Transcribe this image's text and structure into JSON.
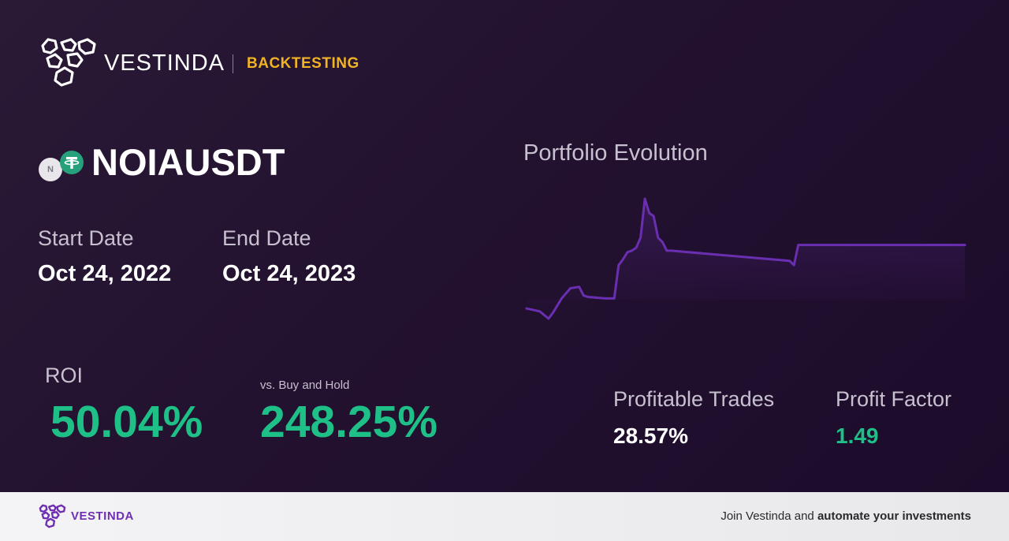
{
  "brand": {
    "name": "VESTINDA",
    "section": "BACKTESTING",
    "logo_icon": "hexagon-cluster-logo",
    "accent_color": "#f0b323"
  },
  "asset": {
    "pair": "NOIAUSDT",
    "base_coin_letter": "N",
    "base_icon": "noia-coin-icon",
    "quote_icon": "tether-coin-icon"
  },
  "dates": {
    "start_label": "Start Date",
    "start_value": "Oct 24, 2022",
    "end_label": "End Date",
    "end_value": "Oct 24, 2023"
  },
  "roi": {
    "label": "ROI",
    "value": "50.04%",
    "buy_hold_label": "vs. Buy and Hold",
    "buy_hold_value": "248.25%",
    "positive_color": "#1fc087"
  },
  "chart": {
    "title": "Portfolio Evolution",
    "line_color": "#6a2fb0"
  },
  "chart_data": {
    "type": "line",
    "title": "Portfolio Evolution",
    "xlabel": "",
    "ylabel": "",
    "grid": false,
    "x": [
      0,
      3,
      5,
      6,
      8,
      10,
      12,
      13,
      14,
      18,
      20,
      21,
      22,
      23,
      24,
      25,
      26,
      27,
      28,
      29,
      30,
      31,
      32,
      33,
      60,
      61,
      62,
      100
    ],
    "values": [
      0.96,
      0.94,
      0.89,
      0.93,
      1.03,
      1.1,
      1.11,
      1.05,
      1.04,
      1.03,
      1.03,
      1.26,
      1.3,
      1.35,
      1.36,
      1.38,
      1.45,
      1.72,
      1.62,
      1.6,
      1.45,
      1.42,
      1.36,
      1.36,
      1.29,
      1.26,
      1.4,
      1.4
    ]
  },
  "stats": {
    "profitable_trades_label": "Profitable Trades",
    "profitable_trades_value": "28.57%",
    "profit_factor_label": "Profit Factor",
    "profit_factor_value": "1.49"
  },
  "footer": {
    "brand": "VESTINDA",
    "cta_prefix": "Join Vestinda and ",
    "cta_bold": "automate your investments",
    "brand_color": "#6e2fb1"
  }
}
